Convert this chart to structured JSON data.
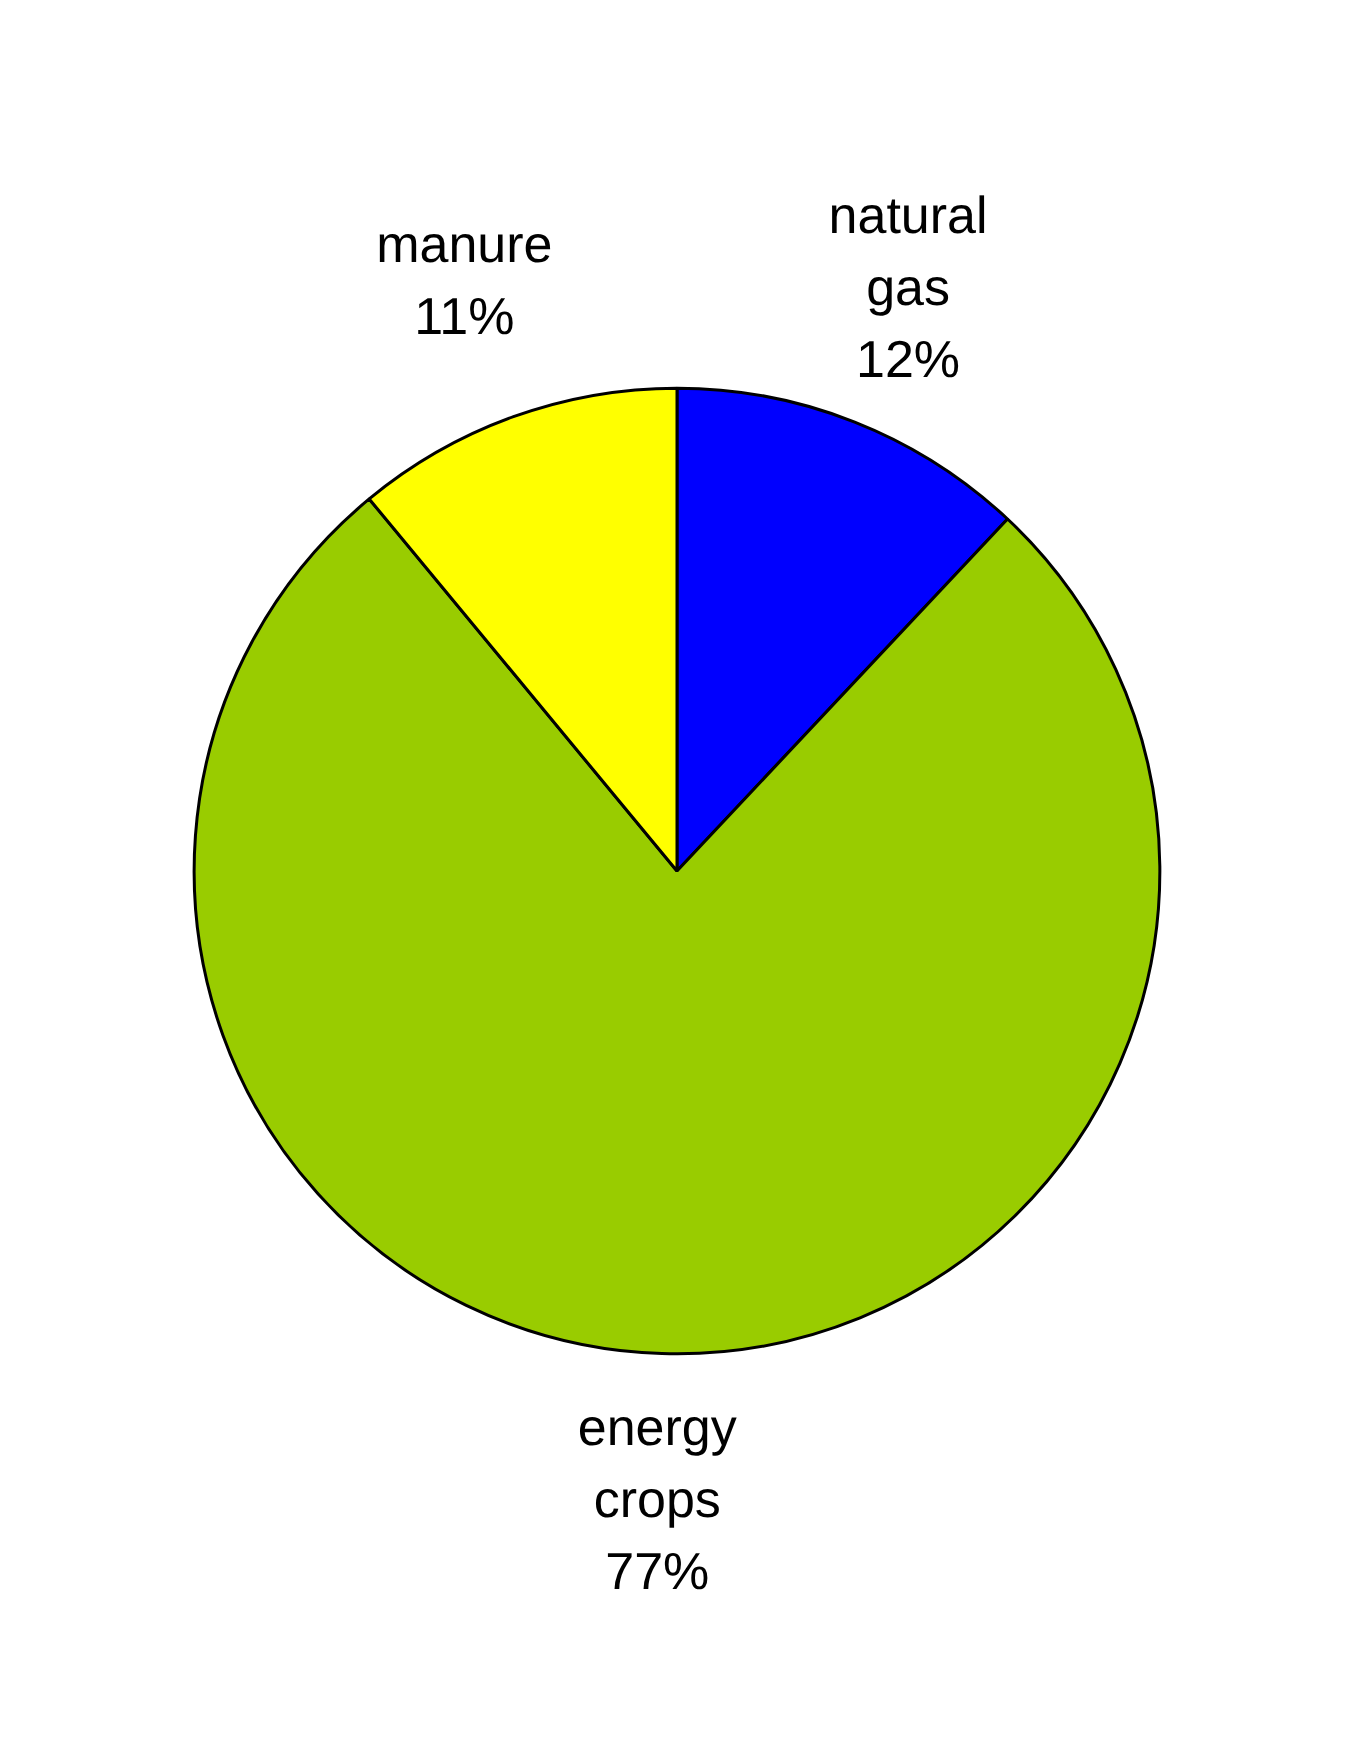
{
  "chart_data": {
    "type": "pie",
    "categories": [
      "natural gas",
      "energy crops",
      "manure"
    ],
    "values": [
      12,
      77,
      11
    ],
    "colors": [
      "#0000ff",
      "#99cc00",
      "#ffff00"
    ],
    "value_labels": [
      "12%",
      "77%",
      "11%"
    ]
  }
}
